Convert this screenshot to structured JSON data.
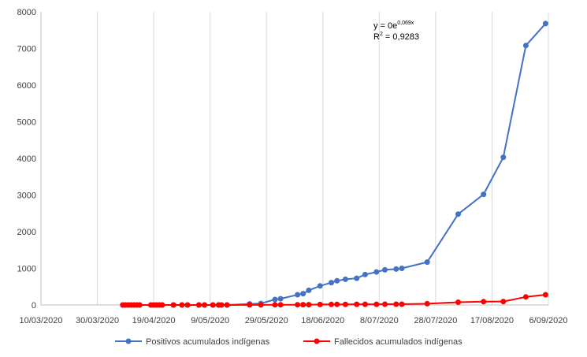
{
  "chart_data": {
    "type": "line",
    "title": "",
    "xlabel": "",
    "ylabel": "",
    "x_axis": {
      "tick_labels": [
        "10/03/2020",
        "30/03/2020",
        "19/04/2020",
        "9/05/2020",
        "29/05/2020",
        "18/06/2020",
        "8/07/2020",
        "28/07/2020",
        "17/08/2020",
        "6/09/2020"
      ],
      "tick_days": [
        0,
        20,
        40,
        60,
        80,
        100,
        120,
        140,
        160,
        180
      ]
    },
    "ylim": [
      0,
      8000
    ],
    "y_ticks": [
      "0",
      "1000",
      "2000",
      "3000",
      "4000",
      "5000",
      "6000",
      "7000",
      "8000"
    ],
    "grid": "vertical",
    "legend": "bottom",
    "annotation": {
      "line1_main": "y = 0e",
      "line1_exp": "0,069x",
      "line2_main": "R",
      "line2_sup": "2",
      "line2_rest": " = 0,9283"
    },
    "series": [
      {
        "name": "Positivos acumulados indígenas",
        "color": "#4472C4",
        "points": [
          [
            29,
            0
          ],
          [
            30,
            0
          ],
          [
            31,
            0
          ],
          [
            32,
            0
          ],
          [
            33,
            0
          ],
          [
            34,
            0
          ],
          [
            35,
            0
          ],
          [
            39,
            0
          ],
          [
            40,
            0
          ],
          [
            41,
            0
          ],
          [
            42,
            0
          ],
          [
            43,
            0
          ],
          [
            47,
            0
          ],
          [
            50,
            0
          ],
          [
            52,
            0
          ],
          [
            56,
            0
          ],
          [
            58,
            0
          ],
          [
            61,
            0
          ],
          [
            63,
            0
          ],
          [
            64,
            0
          ],
          [
            66,
            0
          ],
          [
            74,
            30
          ],
          [
            78,
            40
          ],
          [
            83,
            150
          ],
          [
            85,
            170
          ],
          [
            91,
            280
          ],
          [
            93,
            310
          ],
          [
            95,
            400
          ],
          [
            99,
            520
          ],
          [
            103,
            610
          ],
          [
            105,
            660
          ],
          [
            108,
            700
          ],
          [
            112,
            730
          ],
          [
            115,
            830
          ],
          [
            119,
            900
          ],
          [
            122,
            960
          ],
          [
            126,
            980
          ],
          [
            128,
            1000
          ],
          [
            137,
            1170
          ],
          [
            148,
            2480
          ],
          [
            157,
            3020
          ],
          [
            164,
            4030
          ],
          [
            172,
            7080
          ],
          [
            179,
            7680
          ]
        ]
      },
      {
        "name": "Fallecidos acumulados indígenas",
        "color": "#FF0000",
        "points": [
          [
            29,
            0
          ],
          [
            30,
            0
          ],
          [
            31,
            0
          ],
          [
            32,
            0
          ],
          [
            33,
            0
          ],
          [
            34,
            0
          ],
          [
            35,
            0
          ],
          [
            39,
            0
          ],
          [
            40,
            0
          ],
          [
            41,
            0
          ],
          [
            42,
            0
          ],
          [
            43,
            0
          ],
          [
            47,
            0
          ],
          [
            50,
            0
          ],
          [
            52,
            0
          ],
          [
            56,
            0
          ],
          [
            58,
            0
          ],
          [
            61,
            0
          ],
          [
            63,
            0
          ],
          [
            64,
            0
          ],
          [
            66,
            0
          ],
          [
            74,
            2
          ],
          [
            78,
            3
          ],
          [
            83,
            4
          ],
          [
            85,
            5
          ],
          [
            91,
            6
          ],
          [
            93,
            8
          ],
          [
            95,
            9
          ],
          [
            99,
            12
          ],
          [
            103,
            15
          ],
          [
            105,
            17
          ],
          [
            108,
            18
          ],
          [
            112,
            20
          ],
          [
            115,
            20
          ],
          [
            119,
            20
          ],
          [
            122,
            21
          ],
          [
            126,
            22
          ],
          [
            128,
            22
          ],
          [
            137,
            35
          ],
          [
            148,
            75
          ],
          [
            157,
            90
          ],
          [
            164,
            95
          ],
          [
            172,
            220
          ],
          [
            179,
            280
          ]
        ]
      }
    ]
  }
}
